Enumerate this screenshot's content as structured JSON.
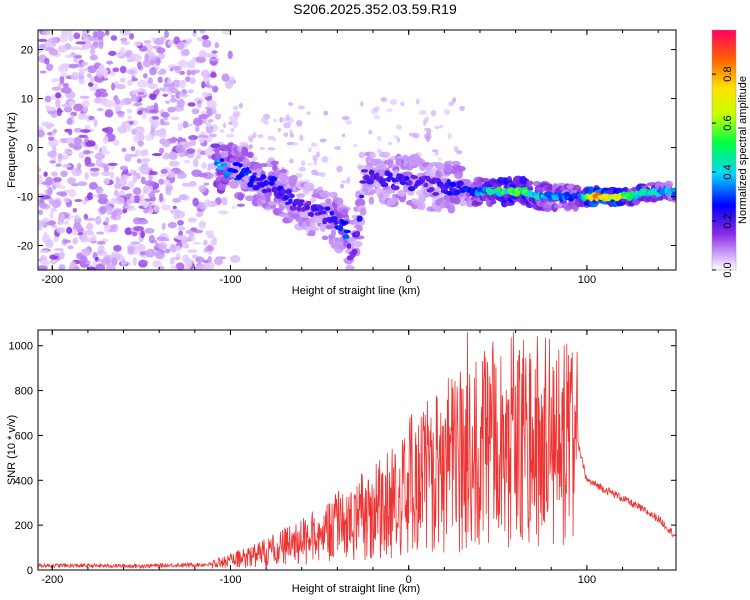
{
  "title": "S206.2025.352.03.59.R19",
  "chart_data": [
    {
      "type": "heatmap",
      "name": "spectrogram",
      "xlabel": "Height of straight line (km)",
      "ylabel": "Frequency (Hz)",
      "xlim": [
        -208,
        150
      ],
      "ylim": [
        -25,
        24
      ],
      "xticks": [
        -200,
        -100,
        0,
        100
      ],
      "yticks": [
        -20,
        -10,
        0,
        10,
        20
      ],
      "colorbar": {
        "label": "Normalized spectral amplitude",
        "range": [
          0.0,
          0.98
        ],
        "ticks": [
          0.0,
          0.2,
          0.4,
          0.6,
          0.8
        ]
      },
      "ridge": [
        {
          "x": -105,
          "f": -4,
          "amp": 0.35
        },
        {
          "x": -95,
          "f": -5,
          "amp": 0.3
        },
        {
          "x": -85,
          "f": -7,
          "amp": 0.25
        },
        {
          "x": -75,
          "f": -8,
          "amp": 0.25
        },
        {
          "x": -65,
          "f": -11,
          "amp": 0.22
        },
        {
          "x": -55,
          "f": -13,
          "amp": 0.2
        },
        {
          "x": -45,
          "f": -14,
          "amp": 0.25
        },
        {
          "x": -35,
          "f": -17,
          "amp": 0.3
        },
        {
          "x": -32,
          "f": -23,
          "amp": 0.15
        },
        {
          "x": -28,
          "f": -16,
          "amp": 0.25
        },
        {
          "x": -25,
          "f": -6,
          "amp": 0.2
        },
        {
          "x": -15,
          "f": -6,
          "amp": 0.2
        },
        {
          "x": -5,
          "f": -7,
          "amp": 0.25
        },
        {
          "x": 5,
          "f": -7,
          "amp": 0.2
        },
        {
          "x": 15,
          "f": -8,
          "amp": 0.2
        },
        {
          "x": 25,
          "f": -8,
          "amp": 0.25
        },
        {
          "x": 35,
          "f": -9,
          "amp": 0.3
        },
        {
          "x": 45,
          "f": -9,
          "amp": 0.45
        },
        {
          "x": 55,
          "f": -9,
          "amp": 0.55
        },
        {
          "x": 65,
          "f": -9,
          "amp": 0.55
        },
        {
          "x": 75,
          "f": -10,
          "amp": 0.4
        },
        {
          "x": 85,
          "f": -10,
          "amp": 0.35
        },
        {
          "x": 95,
          "f": -10,
          "amp": 0.3
        },
        {
          "x": 105,
          "f": -10,
          "amp": 0.85
        },
        {
          "x": 115,
          "f": -10,
          "amp": 0.8
        },
        {
          "x": 125,
          "f": -10,
          "amp": 0.5
        },
        {
          "x": 135,
          "f": -9,
          "amp": 0.45
        },
        {
          "x": 145,
          "f": -9,
          "amp": 0.4
        }
      ]
    },
    {
      "type": "line",
      "name": "snr",
      "xlabel": "Height of straight line (km)",
      "ylabel": "SNR (10 * v/v)",
      "xlim": [
        -208,
        150
      ],
      "ylim": [
        0,
        1070
      ],
      "xticks": [
        -200,
        -100,
        0,
        100
      ],
      "yticks": [
        0,
        200,
        400,
        600,
        800,
        1000
      ],
      "color": "#ee3333",
      "envelope": [
        {
          "x": -208,
          "y": 20
        },
        {
          "x": -150,
          "y": 18
        },
        {
          "x": -110,
          "y": 25
        },
        {
          "x": -90,
          "y": 60
        },
        {
          "x": -70,
          "y": 110
        },
        {
          "x": -50,
          "y": 160
        },
        {
          "x": -30,
          "y": 240
        },
        {
          "x": -10,
          "y": 330
        },
        {
          "x": 0,
          "y": 390
        },
        {
          "x": 20,
          "y": 480
        },
        {
          "x": 40,
          "y": 580
        },
        {
          "x": 60,
          "y": 610
        },
        {
          "x": 80,
          "y": 600
        },
        {
          "x": 95,
          "y": 560
        },
        {
          "x": 100,
          "y": 400
        },
        {
          "x": 120,
          "y": 320
        },
        {
          "x": 140,
          "y": 230
        },
        {
          "x": 150,
          "y": 150
        }
      ],
      "peak": {
        "x": 33,
        "y": 1060
      }
    }
  ]
}
